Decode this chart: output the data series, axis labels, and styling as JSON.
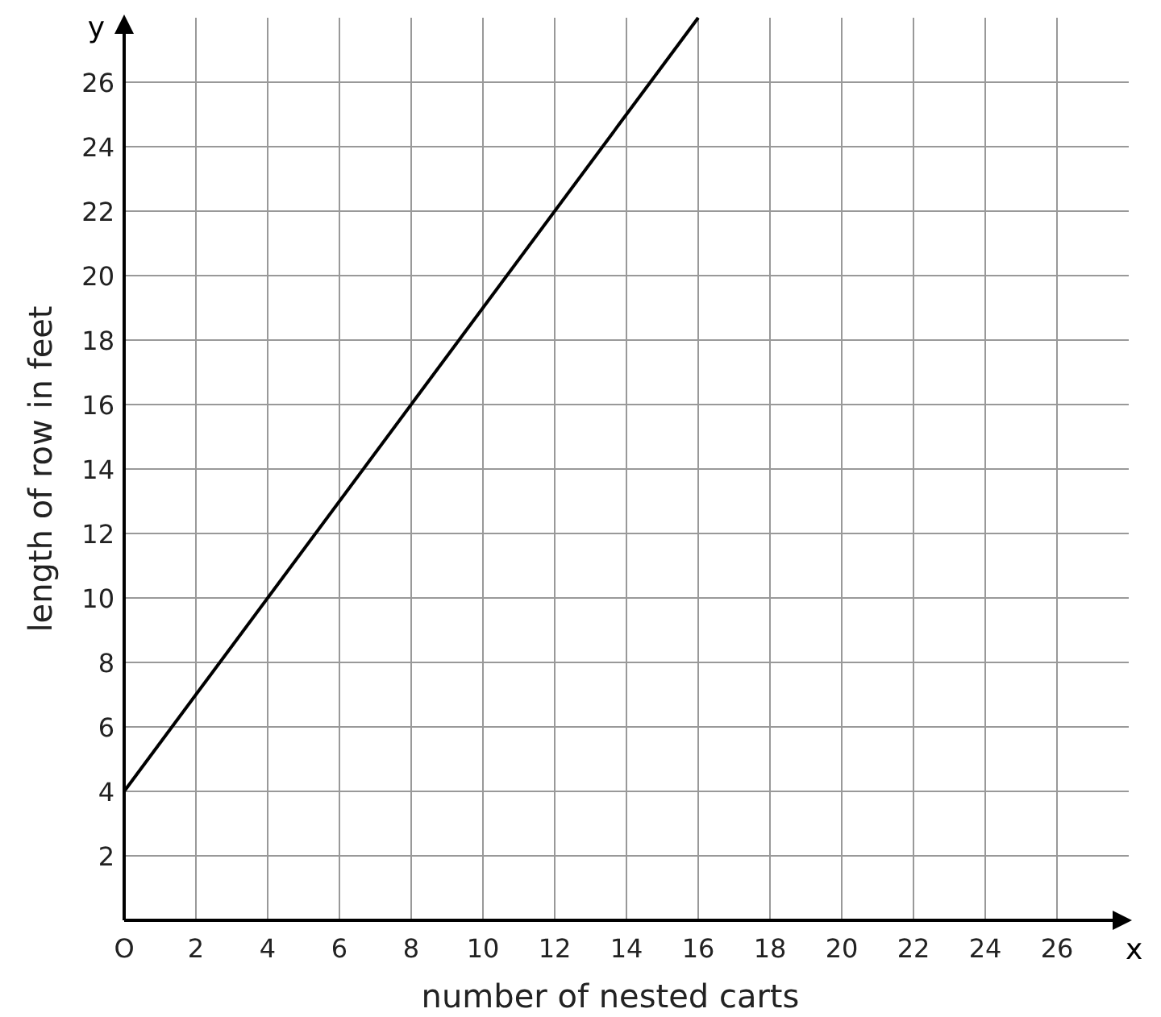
{
  "chart_data": {
    "type": "line",
    "xlabel": "number of nested carts",
    "ylabel": "length of row in feet",
    "x": [
      0,
      16
    ],
    "series": [
      {
        "color": "#000000",
        "values": [
          4,
          28
        ]
      }
    ],
    "xlim": [
      0,
      28
    ],
    "ylim": [
      0,
      28
    ],
    "xticks": [
      {
        "value": 0,
        "label": "O"
      },
      2,
      4,
      6,
      8,
      10,
      12,
      14,
      16,
      18,
      20,
      22,
      24,
      26
    ],
    "yticks": [
      2,
      4,
      6,
      8,
      10,
      12,
      14,
      16,
      18,
      20,
      22,
      24,
      26
    ],
    "grid": true,
    "marker": "none",
    "line_style": "solid",
    "annotations": [
      "x",
      "y"
    ]
  }
}
